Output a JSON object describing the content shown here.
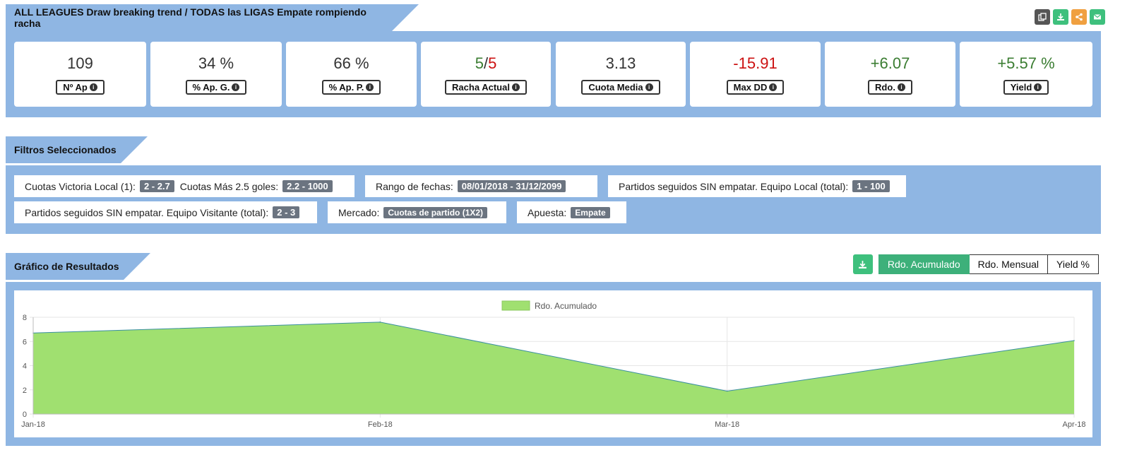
{
  "header": {
    "title": "ALL LEAGUES Draw breaking trend / TODAS las LIGAS Empate rompiendo racha",
    "toolbar": [
      {
        "icon": "copy-icon",
        "color": "#555555"
      },
      {
        "icon": "download-icon",
        "color": "#3ec07d"
      },
      {
        "icon": "share-icon",
        "color": "#f0a040"
      },
      {
        "icon": "envelope-icon",
        "color": "#3ec07d"
      }
    ]
  },
  "stats": [
    {
      "value": "109",
      "label": "Nº Ap",
      "color": "default"
    },
    {
      "value": "34 %",
      "label": "% Ap. G.",
      "color": "default"
    },
    {
      "value": "66 %",
      "label": "% Ap. P.",
      "color": "default"
    },
    {
      "value_a": "5",
      "value_sep": "/",
      "value_b": "5",
      "label": "Racha Actual",
      "color": "mixed"
    },
    {
      "value": "3.13",
      "label": "Cuota Media",
      "color": "default"
    },
    {
      "value": "-15.91",
      "label": "Max DD",
      "color": "red"
    },
    {
      "value": "+6.07",
      "label": "Rdo.",
      "color": "green"
    },
    {
      "value": "+5.57 %",
      "label": "Yield",
      "color": "green"
    }
  ],
  "filters_section": {
    "title": "Filtros Seleccionados",
    "row1": [
      {
        "label1": "Cuotas Victoria Local (1):",
        "badge1": "2 - 2.7",
        "label2": "Cuotas Más 2.5 goles:",
        "badge2": "2.2 - 1000"
      },
      {
        "label": "Rango de fechas:",
        "badge": "08/01/2018 - 31/12/2099"
      },
      {
        "label": "Partidos seguidos SIN empatar. Equipo Local (total):",
        "badge": "1 - 100"
      }
    ],
    "row2": [
      {
        "label": "Partidos seguidos SIN empatar. Equipo Visitante (total):",
        "badge": "2 - 3"
      },
      {
        "label": "Mercado:",
        "badge": "Cuotas de partido (1X2)"
      },
      {
        "label": "Apuesta:",
        "badge": "Empate"
      }
    ]
  },
  "chart_section": {
    "title": "Gráfico de Resultados",
    "download_icon": "download-icon",
    "buttons": [
      "Rdo. Acumulado",
      "Rdo. Mensual",
      "Yield %"
    ],
    "active_button": "Rdo. Acumulado"
  },
  "chart_data": {
    "type": "area",
    "x": [
      "Jan-18",
      "Feb-18",
      "Mar-18",
      "Apr-18"
    ],
    "series": [
      {
        "name": "Rdo. Acumulado",
        "values": [
          6.7,
          7.6,
          1.9,
          6.07
        ],
        "color": "#a0e070"
      }
    ],
    "ylim": [
      0,
      8
    ],
    "yticks": [
      0,
      2,
      4,
      6,
      8
    ],
    "grid": true,
    "legend": "top-center"
  }
}
